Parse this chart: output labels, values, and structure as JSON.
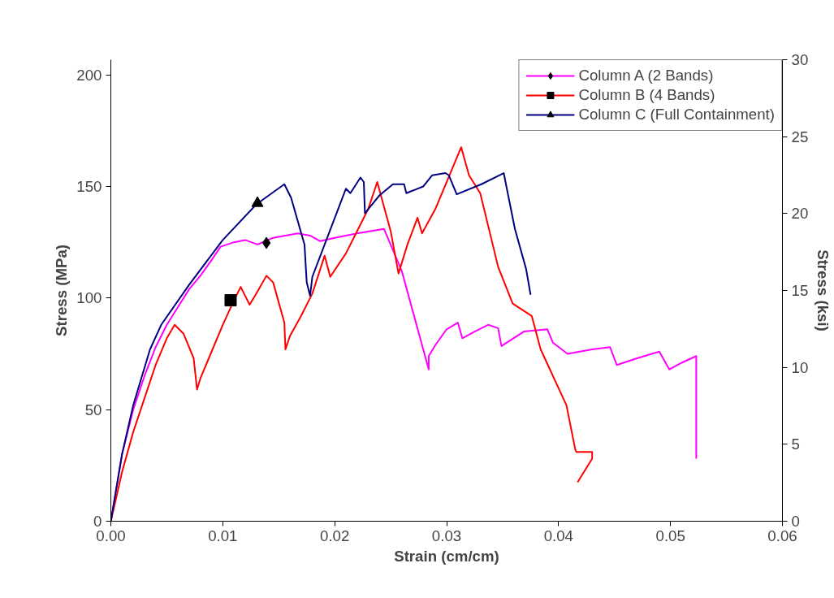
{
  "chart_data": {
    "type": "line",
    "xlabel": "Strain (cm/cm)",
    "ylabel": "Stress (MPa)",
    "y2label": "Stress (ksi)",
    "xlim": [
      0,
      0.06
    ],
    "xticks": [
      {
        "value": 0,
        "label": "0.00"
      },
      {
        "value": 0.01,
        "label": "0.01"
      },
      {
        "value": 0.02,
        "label": "0.02"
      },
      {
        "value": 0.03,
        "label": "0.03"
      },
      {
        "value": 0.04,
        "label": "0.04"
      },
      {
        "value": 0.05,
        "label": "0.05"
      },
      {
        "value": 0.06,
        "label": "0.06"
      }
    ],
    "ylim": [
      0,
      206.8
    ],
    "yticks": [
      0,
      50,
      100,
      150,
      200
    ],
    "y2lim": [
      0,
      30
    ],
    "y2ticks": [
      0,
      5,
      10,
      15,
      20,
      25,
      30
    ],
    "grid": false,
    "legend": "top right",
    "marker": "none",
    "line_style": "solid",
    "series": [
      {
        "name": "Column A (2 Bands)",
        "color": "#ff00ff",
        "x": [
          0,
          0.001,
          0.002,
          0.003,
          0.004,
          0.005,
          0.006,
          0.007,
          0.008,
          0.009,
          0.0098,
          0.011,
          0.012,
          0.0131,
          0.0145,
          0.0167,
          0.0178,
          0.0187,
          0.02,
          0.022,
          0.0244,
          0.026,
          0.0284,
          0.0284,
          0.029,
          0.03,
          0.031,
          0.0314,
          0.0325,
          0.0337,
          0.0346,
          0.0349,
          0.0369,
          0.039,
          0.0395,
          0.0408,
          0.043,
          0.0446,
          0.0452,
          0.047,
          0.049,
          0.0499,
          0.051,
          0.0523,
          0.0523
        ],
        "values": [
          0,
          30,
          50,
          65,
          78,
          88,
          96,
          104,
          110,
          117,
          123,
          125,
          126,
          124,
          127,
          129,
          128,
          125.5,
          127,
          129,
          131,
          112,
          68,
          74,
          79,
          86,
          89,
          82,
          85,
          88,
          86.5,
          78.5,
          85,
          86,
          80,
          75,
          77,
          78,
          70,
          73,
          76,
          68,
          71,
          74,
          28
        ]
      },
      {
        "name": "Column B (4 Bands)",
        "color": "#ff0000",
        "x": [
          0,
          0.001,
          0.002,
          0.003,
          0.004,
          0.005,
          0.0057,
          0.0065,
          0.0074,
          0.0077,
          0.008,
          0.009,
          0.01,
          0.011,
          0.0116,
          0.0124,
          0.013,
          0.0139,
          0.0145,
          0.0155,
          0.0156,
          0.016,
          0.017,
          0.018,
          0.0191,
          0.0196,
          0.021,
          0.022,
          0.023,
          0.0238,
          0.025,
          0.0257,
          0.0265,
          0.0274,
          0.0278,
          0.029,
          0.03,
          0.0313,
          0.032,
          0.033,
          0.0346,
          0.0359,
          0.0376,
          0.0384,
          0.0407,
          0.0415,
          0.0416,
          0.043,
          0.043,
          0.0417
        ],
        "values": [
          0,
          22,
          40,
          55,
          70,
          82,
          88,
          84,
          73,
          59,
          64,
          76,
          88,
          99,
          105,
          97,
          102,
          110,
          107,
          89,
          77,
          83,
          92,
          102,
          119,
          109.5,
          120,
          130,
          140,
          152,
          130,
          111,
          124,
          136,
          129,
          140,
          152,
          167.6,
          155,
          147,
          114,
          97.5,
          92,
          77,
          52,
          32,
          31,
          31,
          28,
          17.5
        ]
      },
      {
        "name": "Column C (Full Containment)",
        "color": "#000080",
        "x": [
          0,
          0.001,
          0.002,
          0.0035,
          0.0045,
          0.007,
          0.01,
          0.013,
          0.0155,
          0.0161,
          0.0173,
          0.0175,
          0.0178,
          0.018,
          0.021,
          0.0214,
          0.0223,
          0.0226,
          0.0227,
          0.024,
          0.0252,
          0.0262,
          0.0264,
          0.0279,
          0.0287,
          0.0299,
          0.0302,
          0.0309,
          0.0331,
          0.0351,
          0.0361,
          0.0371,
          0.0375
        ],
        "values": [
          0,
          30,
          52,
          77,
          88,
          106,
          126,
          142,
          151,
          145,
          124,
          107,
          101,
          109.5,
          149,
          147,
          154,
          152,
          138,
          146,
          151,
          151,
          147,
          150,
          155,
          156,
          155,
          146.5,
          151,
          156,
          131,
          113,
          101.5
        ]
      },
      {
        "type": "scatter",
        "color": "#000000",
        "marker": "diamond",
        "x": [
          0.0139
        ],
        "values": [
          124.7
        ]
      },
      {
        "type": "scatter",
        "color": "#000000",
        "marker": "square",
        "x": [
          0.0107
        ],
        "values": [
          99
        ]
      },
      {
        "type": "scatter",
        "color": "#000000",
        "marker": "triangle",
        "x": [
          0.0131
        ],
        "values": [
          142.5
        ]
      }
    ]
  }
}
